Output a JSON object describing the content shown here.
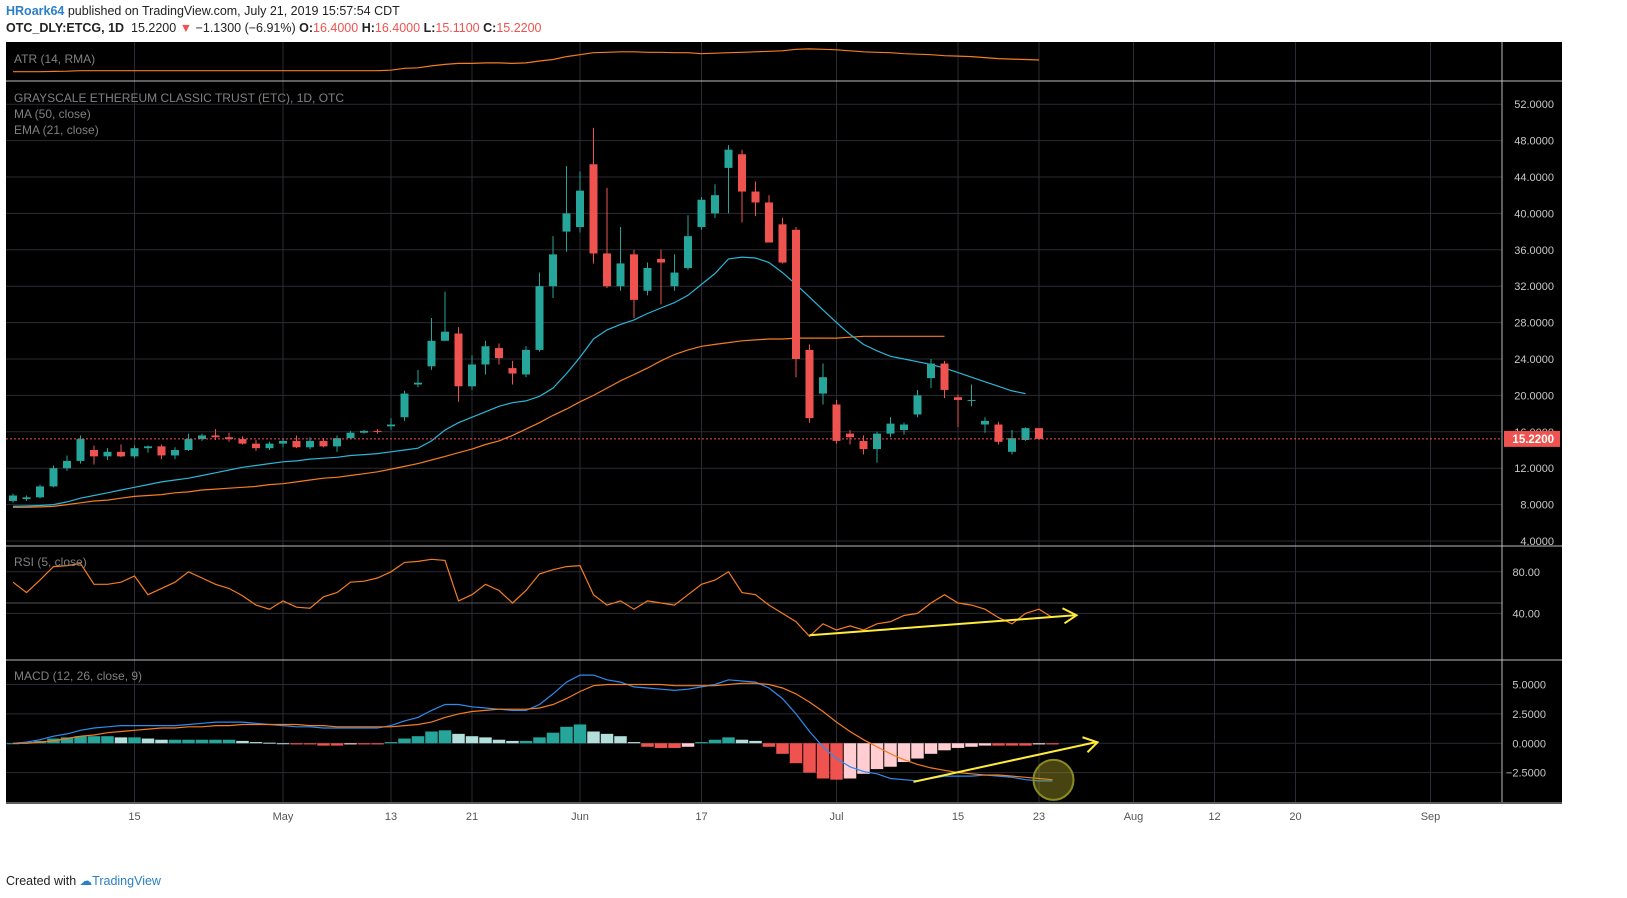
{
  "header": {
    "author": "HRoark64",
    "published": "published on TradingView.com, July 21, 2019 15:57:54 CDT",
    "symbol": "OTC_DLY:ETCG, 1D",
    "last": "15.2200",
    "change": "−1.1300 (−6.91%)",
    "o_label": "O:",
    "o": "16.4000",
    "h_label": "H:",
    "h": "16.4000",
    "l_label": "L:",
    "l": "15.1100",
    "c_label": "C:",
    "c": "15.2200"
  },
  "footer": {
    "created": "Created with",
    "brand": "TradingView"
  },
  "colors": {
    "up": "#26a69a",
    "down": "#ef5350",
    "ema": "#29b6d8",
    "ma": "#f57c1f",
    "macd": "#2d8cf0",
    "signal": "#f57c1f",
    "arrow": "#ffeb3b",
    "bg": "#000000",
    "grid": "#2b2b35"
  },
  "chart_data": {
    "type": "candlestick",
    "x_tick_labels": [
      {
        "i": 9,
        "label": "15"
      },
      {
        "i": 20,
        "label": "May"
      },
      {
        "i": 28,
        "label": "13"
      },
      {
        "i": 34,
        "label": "21"
      },
      {
        "i": 42,
        "label": "Jun"
      },
      {
        "i": 51,
        "label": "17"
      },
      {
        "i": 61,
        "label": "Jul"
      },
      {
        "i": 70,
        "label": "15"
      },
      {
        "i": 76,
        "label": "23"
      },
      {
        "i": 83,
        "label": "Aug"
      },
      {
        "i": 89,
        "label": "12"
      },
      {
        "i": 95,
        "label": "20"
      },
      {
        "i": 105,
        "label": "Sep"
      }
    ],
    "x_slots": 112,
    "price_panel": {
      "title": "GRAYSCALE ETHEREUM CLASSIC TRUST (ETC), 1D, OTC",
      "legend": [
        "MA (50, close)",
        "EMA (21, close)"
      ],
      "ylim": [
        4,
        54
      ],
      "yticks": [
        4,
        8,
        12,
        16,
        20,
        24,
        28,
        32,
        36,
        40,
        44,
        48,
        52
      ],
      "last_price": 15.22,
      "last_price_label": "15.2200",
      "ohlc": [
        [
          8.4,
          9.2,
          8.2,
          9.0
        ],
        [
          8.6,
          9.0,
          8.4,
          8.8
        ],
        [
          8.8,
          10.2,
          8.7,
          10.0
        ],
        [
          10.0,
          12.3,
          9.9,
          12.0
        ],
        [
          12.0,
          13.4,
          11.7,
          12.8
        ],
        [
          12.8,
          15.6,
          12.5,
          15.2
        ],
        [
          14.0,
          14.5,
          12.4,
          13.3
        ],
        [
          13.3,
          14.2,
          12.9,
          13.8
        ],
        [
          13.8,
          14.6,
          13.2,
          13.3
        ],
        [
          13.3,
          14.5,
          13.1,
          14.2
        ],
        [
          14.2,
          14.5,
          13.7,
          14.4
        ],
        [
          14.4,
          14.6,
          13.0,
          13.4
        ],
        [
          13.4,
          14.3,
          13.0,
          14.0
        ],
        [
          14.0,
          15.8,
          13.9,
          15.2
        ],
        [
          15.2,
          15.8,
          15.0,
          15.6
        ],
        [
          15.6,
          16.3,
          15.1,
          15.4
        ],
        [
          15.4,
          15.9,
          14.9,
          15.2
        ],
        [
          15.2,
          15.5,
          14.6,
          14.7
        ],
        [
          14.7,
          15.1,
          13.9,
          14.2
        ],
        [
          14.2,
          14.9,
          14.0,
          14.7
        ],
        [
          14.7,
          15.2,
          14.3,
          15.0
        ],
        [
          15.0,
          15.6,
          14.2,
          14.3
        ],
        [
          14.3,
          15.4,
          14.1,
          15.0
        ],
        [
          15.0,
          15.3,
          14.3,
          14.4
        ],
        [
          14.4,
          15.6,
          13.8,
          15.3
        ],
        [
          15.3,
          16.1,
          15.2,
          15.9
        ],
        [
          15.9,
          16.2,
          15.8,
          16.1
        ],
        [
          16.1,
          16.3,
          15.8,
          16.0
        ],
        [
          16.6,
          17.5,
          16.2,
          16.8
        ],
        [
          17.6,
          20.5,
          17.2,
          20.2
        ],
        [
          21.2,
          22.8,
          20.9,
          21.4
        ],
        [
          23.2,
          28.5,
          22.8,
          26.0
        ],
        [
          26.0,
          31.4,
          26.0,
          27.0
        ],
        [
          26.8,
          27.5,
          19.3,
          21.0
        ],
        [
          21.0,
          24.4,
          20.6,
          23.4
        ],
        [
          23.4,
          26.0,
          22.3,
          25.4
        ],
        [
          25.2,
          25.7,
          23.4,
          24.1
        ],
        [
          23.0,
          23.8,
          21.2,
          22.4
        ],
        [
          22.3,
          25.4,
          22.0,
          25.0
        ],
        [
          25.0,
          33.5,
          24.8,
          32.0
        ],
        [
          32.0,
          37.5,
          30.7,
          35.5
        ],
        [
          38.0,
          45.2,
          35.8,
          40.0
        ],
        [
          38.5,
          44.6,
          37.9,
          42.5
        ],
        [
          45.4,
          49.4,
          34.5,
          35.6
        ],
        [
          35.6,
          42.8,
          31.8,
          32.0
        ],
        [
          32.0,
          38.5,
          31.5,
          34.5
        ],
        [
          35.5,
          36.0,
          28.5,
          30.5
        ],
        [
          31.5,
          34.6,
          31.0,
          34.0
        ],
        [
          35.0,
          36.0,
          30.0,
          34.6
        ],
        [
          32.0,
          35.5,
          31.5,
          33.5
        ],
        [
          34.0,
          39.8,
          33.8,
          37.5
        ],
        [
          38.5,
          41.8,
          38.2,
          41.5
        ],
        [
          40.0,
          43.2,
          39.5,
          42.0
        ],
        [
          45.0,
          47.5,
          40.0,
          47.0
        ],
        [
          46.5,
          47.0,
          39.0,
          42.4
        ],
        [
          42.4,
          43.5,
          39.7,
          41.2
        ],
        [
          41.2,
          42.0,
          37.2,
          36.8
        ],
        [
          38.8,
          39.5,
          34.5,
          34.6
        ],
        [
          38.2,
          38.5,
          22.0,
          24.0
        ],
        [
          25.0,
          25.6,
          17.0,
          17.5
        ],
        [
          20.2,
          23.5,
          19.0,
          22.0
        ],
        [
          19.0,
          19.5,
          14.7,
          15.0
        ],
        [
          15.8,
          16.2,
          14.6,
          15.4
        ],
        [
          15.0,
          15.6,
          13.5,
          14.1
        ],
        [
          14.1,
          16.0,
          12.6,
          15.8
        ],
        [
          15.8,
          17.6,
          15.4,
          16.9
        ],
        [
          16.2,
          17.0,
          15.7,
          16.8
        ],
        [
          17.9,
          20.6,
          17.6,
          20.0
        ],
        [
          21.9,
          24.0,
          20.8,
          23.5
        ],
        [
          23.5,
          23.8,
          19.7,
          20.6
        ],
        [
          19.8,
          20.1,
          16.5,
          19.5
        ],
        [
          19.4,
          21.2,
          18.8,
          19.5
        ],
        [
          16.8,
          17.6,
          15.9,
          17.2
        ],
        [
          16.8,
          17.1,
          14.6,
          14.9
        ],
        [
          13.8,
          16.2,
          13.5,
          15.3
        ],
        [
          15.1,
          16.5,
          15.0,
          16.4
        ],
        [
          16.4,
          16.4,
          15.11,
          15.22
        ]
      ],
      "ema21": [
        7.8,
        7.85,
        7.9,
        8.0,
        8.3,
        8.7,
        9.0,
        9.3,
        9.6,
        9.9,
        10.2,
        10.5,
        10.7,
        10.9,
        11.2,
        11.5,
        11.8,
        12.1,
        12.3,
        12.5,
        12.7,
        12.8,
        13.0,
        13.1,
        13.2,
        13.4,
        13.5,
        13.6,
        13.8,
        14.0,
        14.2,
        15.0,
        16.2,
        17.0,
        17.6,
        18.2,
        18.8,
        19.2,
        19.4,
        19.9,
        20.8,
        22.4,
        24.2,
        26.2,
        27.2,
        27.8,
        28.3,
        29.0,
        29.6,
        30.2,
        31.0,
        32.2,
        33.4,
        35.0,
        35.2,
        35.1,
        34.6,
        33.5,
        32.2,
        30.8,
        29.4,
        28.0,
        26.7,
        25.6,
        24.9,
        24.3,
        24.0,
        23.7,
        23.4,
        23.0,
        22.5,
        22.0,
        21.5,
        21.0,
        20.5,
        20.2
      ],
      "ma50": [
        7.7,
        7.7,
        7.75,
        7.8,
        8.0,
        8.2,
        8.4,
        8.5,
        8.7,
        8.9,
        9.0,
        9.1,
        9.3,
        9.4,
        9.6,
        9.7,
        9.8,
        9.9,
        10.0,
        10.2,
        10.3,
        10.5,
        10.7,
        10.9,
        11.0,
        11.2,
        11.4,
        11.6,
        11.9,
        12.2,
        12.5,
        12.9,
        13.3,
        13.7,
        14.1,
        14.6,
        15.0,
        15.6,
        16.3,
        17.0,
        17.8,
        18.5,
        19.3,
        20.0,
        20.8,
        21.6,
        22.3,
        23.0,
        23.8,
        24.5,
        25.0,
        25.4,
        25.6,
        25.8,
        26.0,
        26.1,
        26.2,
        26.2,
        26.3,
        26.3,
        26.3,
        26.3,
        26.4,
        26.5,
        26.5,
        26.5,
        26.5,
        26.5,
        26.5,
        26.5
      ]
    },
    "atr_panel": {
      "title": "ATR (14, RMA)",
      "ylim": [
        0,
        7
      ],
      "values": [
        1.3,
        1.3,
        1.3,
        1.35,
        1.4,
        1.5,
        1.5,
        1.5,
        1.5,
        1.5,
        1.5,
        1.5,
        1.5,
        1.5,
        1.5,
        1.5,
        1.5,
        1.5,
        1.5,
        1.5,
        1.5,
        1.5,
        1.5,
        1.5,
        1.5,
        1.5,
        1.5,
        1.5,
        1.6,
        2.0,
        2.1,
        2.5,
        2.8,
        3.0,
        3.0,
        3.1,
        3.1,
        3.0,
        3.1,
        3.5,
        3.8,
        4.4,
        4.8,
        5.2,
        5.3,
        5.4,
        5.4,
        5.3,
        5.3,
        5.2,
        5.2,
        5.0,
        5.1,
        5.2,
        5.3,
        5.4,
        5.5,
        5.6,
        5.9,
        6.0,
        5.9,
        5.8,
        5.6,
        5.4,
        5.3,
        5.2,
        5.0,
        4.9,
        4.8,
        4.6,
        4.5,
        4.4,
        4.2,
        4.0,
        3.9,
        3.8,
        3.7
      ]
    },
    "rsi_panel": {
      "title": "RSI (5, close)",
      "ylim": [
        0,
        100
      ],
      "yticks": [
        40,
        80
      ],
      "band": 50,
      "values": [
        70,
        60,
        72,
        85,
        86,
        88,
        68,
        68,
        70,
        76,
        58,
        64,
        70,
        80,
        74,
        68,
        64,
        57,
        48,
        44,
        52,
        46,
        45,
        56,
        60,
        70,
        71,
        74,
        80,
        89,
        90,
        92,
        91,
        52,
        58,
        68,
        62,
        50,
        62,
        78,
        82,
        85,
        86,
        58,
        48,
        52,
        44,
        52,
        50,
        48,
        58,
        68,
        72,
        80,
        60,
        58,
        48,
        40,
        32,
        18,
        30,
        24,
        28,
        24,
        30,
        32,
        38,
        40,
        50,
        58,
        50,
        48,
        44,
        36,
        30,
        40,
        44,
        36
      ]
    },
    "macd_panel": {
      "title": "MACD (12, 26, close, 9)",
      "ylim": [
        -5,
        7
      ],
      "yticks": [
        -2.5,
        0,
        2.5,
        5
      ],
      "macd": [
        0,
        0.1,
        0.3,
        0.6,
        0.8,
        1.1,
        1.3,
        1.4,
        1.5,
        1.5,
        1.5,
        1.5,
        1.5,
        1.6,
        1.7,
        1.8,
        1.8,
        1.8,
        1.7,
        1.6,
        1.5,
        1.4,
        1.4,
        1.3,
        1.3,
        1.3,
        1.3,
        1.3,
        1.5,
        1.9,
        2.2,
        2.8,
        3.3,
        3.3,
        3.1,
        3.0,
        2.9,
        2.8,
        2.8,
        3.3,
        4.2,
        5.2,
        5.8,
        5.8,
        5.4,
        5.2,
        4.8,
        4.7,
        4.6,
        4.5,
        4.6,
        4.8,
        5.0,
        5.4,
        5.3,
        5.2,
        4.7,
        3.8,
        2.5,
        1.0,
        -0.3,
        -1.3,
        -2.0,
        -2.4,
        -2.6,
        -3.0,
        -3.1,
        -3.2,
        -3.0,
        -2.8,
        -2.8,
        -2.8,
        -2.7,
        -2.8,
        -2.9,
        -3.1,
        -3.2,
        -3.2
      ],
      "signal": [
        0,
        0,
        0.1,
        0.2,
        0.4,
        0.6,
        0.7,
        0.9,
        1.0,
        1.1,
        1.2,
        1.3,
        1.3,
        1.4,
        1.4,
        1.5,
        1.5,
        1.6,
        1.6,
        1.6,
        1.6,
        1.6,
        1.5,
        1.5,
        1.4,
        1.4,
        1.4,
        1.4,
        1.4,
        1.5,
        1.6,
        1.8,
        2.2,
        2.5,
        2.7,
        2.8,
        2.9,
        2.9,
        2.9,
        3.0,
        3.3,
        3.8,
        4.4,
        4.9,
        5.0,
        5.0,
        5.0,
        5.0,
        5.0,
        4.9,
        4.9,
        4.9,
        4.9,
        5.0,
        5.1,
        5.1,
        5.0,
        4.7,
        4.2,
        3.5,
        2.7,
        1.8,
        1.0,
        0.3,
        -0.3,
        -0.9,
        -1.4,
        -1.8,
        -2.1,
        -2.3,
        -2.5,
        -2.6,
        -2.7,
        -2.7,
        -2.8,
        -2.9,
        -3.0,
        -3.1
      ],
      "hist": [
        0,
        0.1,
        0.2,
        0.4,
        0.5,
        0.6,
        0.6,
        0.6,
        0.5,
        0.5,
        0.4,
        0.3,
        0.3,
        0.3,
        0.3,
        0.3,
        0.3,
        0.2,
        0.1,
        0.05,
        0,
        -0.1,
        -0.1,
        -0.2,
        -0.2,
        -0.1,
        -0.1,
        -0.1,
        0.1,
        0.4,
        0.6,
        1.0,
        1.1,
        0.8,
        0.6,
        0.5,
        0.3,
        0.2,
        0.2,
        0.5,
        0.9,
        1.4,
        1.6,
        1.0,
        0.8,
        0.6,
        0.1,
        -0.3,
        -0.4,
        -0.4,
        -0.3,
        0.1,
        0.3,
        0.5,
        0.3,
        0.2,
        -0.3,
        -0.9,
        -1.7,
        -2.5,
        -3.0,
        -3.1,
        -3.0,
        -2.6,
        -2.2,
        -2.0,
        -1.6,
        -1.3,
        -0.9,
        -0.6,
        -0.4,
        -0.3,
        -0.2,
        -0.2,
        -0.2,
        -0.2,
        -0.1,
        -0.1
      ]
    }
  }
}
